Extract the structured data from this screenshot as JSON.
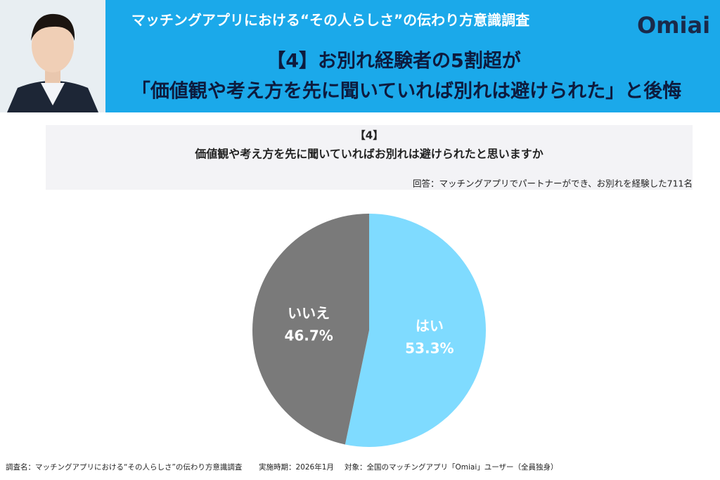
{
  "header": {
    "survey_title": "マッチングアプリにおける“その人らしさ”の伝わり方意識調査",
    "logo": "Omiai",
    "headline": [
      "【4】お別れ経験者の5割超が",
      "「価値観や考え方を先に聞いていれば別れは避けられた」と後悔"
    ]
  },
  "question": {
    "number": "【4】",
    "text": "価値観や考え方を先に聞いていればお別れは避けられたと思いますか",
    "respondents": "回答：マッチングアプリでパートナーができ、お別れを経験した711名"
  },
  "chart_data": {
    "type": "pie",
    "categories": [
      "はい",
      "いいえ"
    ],
    "values": [
      53.3,
      46.7
    ],
    "value_labels": [
      "53.3%",
      "46.7%"
    ],
    "colors": [
      "#7fdbff",
      "#7a7a7a"
    ]
  },
  "footer": [
    "調査名：マッチングアプリにおける“その人らしさ”の伝わり方意識調査",
    "実施時期：2026年1月",
    "対象：全国のマッチングアプリ「Omiai」ユーザー（全員独身）"
  ]
}
